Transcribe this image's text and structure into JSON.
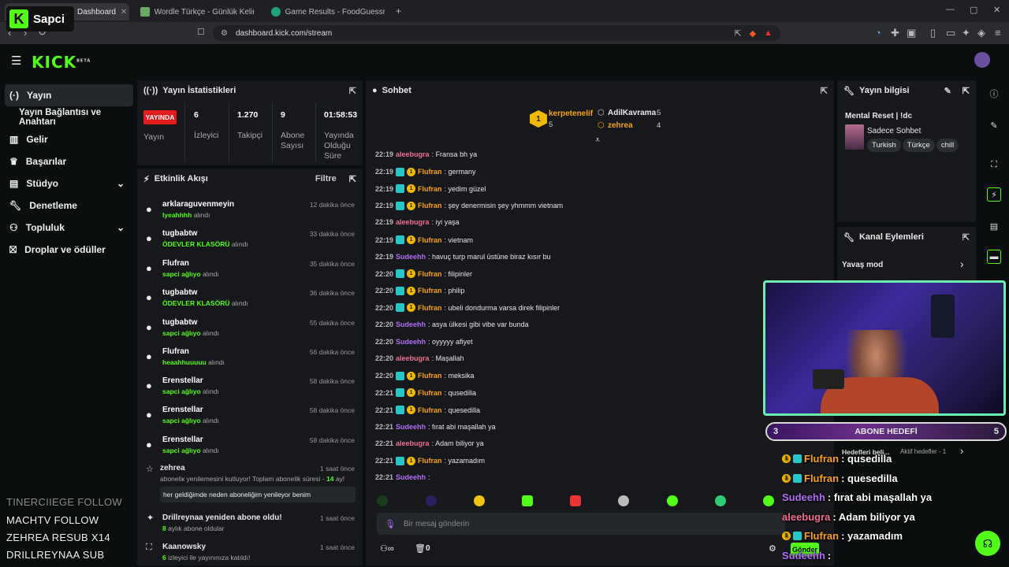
{
  "browser": {
    "tabs": [
      {
        "label": "Dashboard",
        "active": true
      },
      {
        "label": "Wordle Türkçe - Günlük Kelime Oyun"
      },
      {
        "label": "Game Results - FoodGuessr | FoodGu"
      }
    ],
    "url": "dashboard.kick.com/stream"
  },
  "streamer_badge": "Sapci",
  "kick": {
    "logo": "KICK",
    "beta": "BETA"
  },
  "sidebar": {
    "items": [
      {
        "label": "Yayın",
        "icon": "broadcast-icon",
        "active": true
      },
      {
        "label": "Yayın Bağlantısı ve Anahtarı",
        "icon": "",
        "active": false
      },
      {
        "label": "Gelir",
        "icon": "chart-icon"
      },
      {
        "label": "Başarılar",
        "icon": "trophy-icon"
      },
      {
        "label": "Stüdyo",
        "icon": "folder-icon",
        "chevron": true
      },
      {
        "label": "Denetleme",
        "icon": "wrench-icon"
      },
      {
        "label": "Topluluk",
        "icon": "people-icon",
        "chevron": true
      },
      {
        "label": "Droplar ve ödüller",
        "icon": "gift-icon"
      }
    ]
  },
  "stats": {
    "title": "Yayın İstatistikleri",
    "live_badge": "YAYINDA",
    "live_label": "Yayın",
    "items": [
      {
        "value": "6",
        "label": "İzleyici"
      },
      {
        "value": "1.270",
        "label": "Takipçi"
      },
      {
        "value": "9",
        "label": "Abone Sayısı"
      },
      {
        "value": "01:58:53",
        "label": "Yayında Olduğu Süre"
      }
    ]
  },
  "activity": {
    "title": "Etkinlik Akışı",
    "filter": "Filtre",
    "events": [
      {
        "name": "arklaraguvenmeyin",
        "reward": "lyeahhhh",
        "suffix": "alındı",
        "time": "12 dakika önce"
      },
      {
        "name": "tugbabtw",
        "reward": "ÖDEVLER KLASÖRÜ",
        "suffix": "alındı",
        "time": "33 dakika önce"
      },
      {
        "name": "Flufran",
        "reward": "sapci ağlıyo",
        "suffix": "alındı",
        "time": "35 dakika önce"
      },
      {
        "name": "tugbabtw",
        "reward": "ÖDEVLER KLASÖRÜ",
        "suffix": "alındı",
        "time": "36 dakika önce"
      },
      {
        "name": "tugbabtw",
        "reward": "sapci ağlıyo",
        "suffix": "alındı",
        "time": "55 dakika önce"
      },
      {
        "name": "Flufran",
        "reward": "heaahhuuuuu",
        "suffix": "alındı",
        "time": "56 dakika önce"
      },
      {
        "name": "Erenstellar",
        "reward": "sapci ağlıyo",
        "suffix": "alındı",
        "time": "58 dakika önce"
      },
      {
        "name": "Erenstellar",
        "reward": "sapci ağlıyo",
        "suffix": "alındı",
        "time": "58 dakika önce"
      },
      {
        "name": "Erenstellar",
        "reward": "sapci ağlıyo",
        "suffix": "alındı",
        "time": "58 dakika önce"
      }
    ],
    "resub": {
      "name": "zehrea",
      "time": "1 saat önce",
      "text": "aboneliк yenilemesini kutluyor! Toplam abonelik süresi - ",
      "months": "14",
      "ay": " ay!",
      "message": "her geldiğimde neden aboneliğim yenileyor benim"
    },
    "sub": {
      "name": "Drillreynaa yeniden abone oldu!",
      "months": "8",
      "rest": " aylık abone oldular",
      "time": "1 saat önce"
    },
    "raid": {
      "name": "Kaanowsky",
      "count": "6",
      "rest": " izleyici ile yayınınıza katıldı!",
      "time": "1 saat önce"
    }
  },
  "chat": {
    "title": "Sohbet",
    "top": [
      {
        "rank": "1",
        "name": "kerpetenelif",
        "count": "5"
      },
      {
        "name": "AdilKavrama",
        "count": "5"
      },
      {
        "name": "zehrea",
        "count": "4"
      }
    ],
    "messages": [
      {
        "time": "22:19",
        "user": "aleebugra",
        "color": "pink",
        "badges": false,
        "text": ": Fransa bh ya"
      },
      {
        "time": "22:19",
        "user": "Flufran",
        "color": "orange",
        "badges": true,
        "text": ": germany"
      },
      {
        "time": "22:19",
        "user": "Flufran",
        "color": "orange",
        "badges": true,
        "text": ": yedim güzel"
      },
      {
        "time": "22:19",
        "user": "Flufran",
        "color": "orange",
        "badges": true,
        "text": ": şey denermisin şey yhmmm vietnam"
      },
      {
        "time": "22:19",
        "user": "aleebugra",
        "color": "pink",
        "badges": false,
        "text": ": iyi yaşa"
      },
      {
        "time": "22:19",
        "user": "Flufran",
        "color": "orange",
        "badges": true,
        "text": ": vietnam"
      },
      {
        "time": "22:19",
        "user": "Sudeehh",
        "color": "purple",
        "badges": false,
        "text": ": havuç turp marul üstüne biraz kısır bu"
      },
      {
        "time": "22:20",
        "user": "Flufran",
        "color": "orange",
        "badges": true,
        "text": ": filipinler"
      },
      {
        "time": "22:20",
        "user": "Flufran",
        "color": "orange",
        "badges": true,
        "text": ": philip"
      },
      {
        "time": "22:20",
        "user": "Flufran",
        "color": "orange",
        "badges": true,
        "text": ": ubeli dondurma varsa direk filipinler"
      },
      {
        "time": "22:20",
        "user": "Sudeehh",
        "color": "purple",
        "badges": false,
        "text": ": asya ülkesi gibi vibe var bunda"
      },
      {
        "time": "22:20",
        "user": "Sudeehh",
        "color": "purple",
        "badges": false,
        "text": ": oyyyyy afiyet"
      },
      {
        "time": "22:20",
        "user": "aleebugra",
        "color": "pink",
        "badges": false,
        "text": ": Maşallah"
      },
      {
        "time": "22:20",
        "user": "Flufran",
        "color": "orange",
        "badges": true,
        "text": ": meksika"
      },
      {
        "time": "22:21",
        "user": "Flufran",
        "color": "orange",
        "badges": true,
        "text": ": qusedilla"
      },
      {
        "time": "22:21",
        "user": "Flufran",
        "color": "orange",
        "badges": true,
        "text": ": quesedilla"
      },
      {
        "time": "22:21",
        "user": "Sudeehh",
        "color": "purple",
        "badges": false,
        "text": ": fırat abi maşallah ya"
      },
      {
        "time": "22:21",
        "user": "aleebugra",
        "color": "pink",
        "badges": false,
        "text": ": Adam biliyor ya"
      },
      {
        "time": "22:21",
        "user": "Flufran",
        "color": "orange",
        "badges": true,
        "text": ": yazamadım"
      },
      {
        "time": "22:21",
        "user": "Sudeehh",
        "color": "purple",
        "badges": false,
        "text": ":"
      }
    ],
    "input_placeholder": "Bir mesaj gönderin",
    "points": "0",
    "send": "Gönder"
  },
  "stream_info": {
    "title": "Yayın bilgisi",
    "stream_title": "Mental Reset | !dc",
    "category": "Sadece Sohbet",
    "tags": [
      "Turkish",
      "Türkçe",
      "chill"
    ]
  },
  "channel_actions": {
    "title": "Kanal Eylemleri",
    "slow_mode": "Yavaş mod"
  },
  "goal": {
    "left": "3",
    "label": "ABONE HEDEFİ",
    "right": "5",
    "sub": "Hedefleri beli...",
    "active": "Aktif hedefler - 1"
  },
  "overlay_chat": [
    {
      "user": "Flufran",
      "color": "orange",
      "badges": true,
      "text": ": qusedilla"
    },
    {
      "user": "Flufran",
      "color": "orange",
      "badges": true,
      "text": ": quesedilla"
    },
    {
      "user": "Sudeehh",
      "color": "purple",
      "badges": false,
      "text": ": fırat abi maşallah ya"
    },
    {
      "user": "aleebugra",
      "color": "pink",
      "badges": false,
      "text": ": Adam biliyor ya"
    },
    {
      "user": "Flufran",
      "color": "orange",
      "badges": true,
      "text": ": yazamadım"
    },
    {
      "user": "Sudeehh",
      "color": "purple",
      "badges": false,
      "text": ":"
    }
  ],
  "overlay_alerts": [
    "TINERCIIEGE  FOLLOW",
    "MACHTV  FOLLOW",
    "ZEHREA  RESUB X14",
    "DRILLREYNAA  SUB"
  ],
  "colors": {
    "brand": "#53fc18",
    "live": "#e21b1b"
  }
}
